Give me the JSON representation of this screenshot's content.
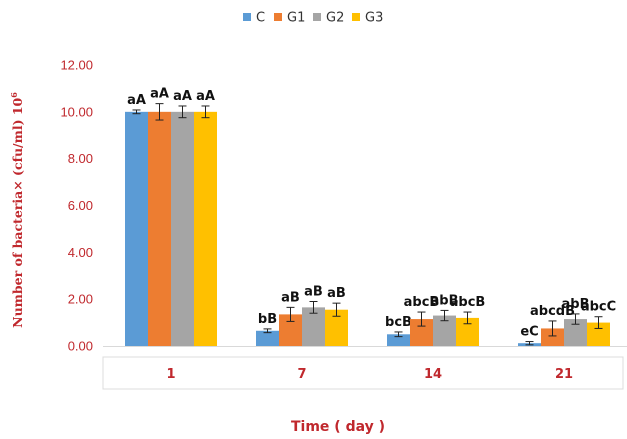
{
  "chart_data": {
    "type": "bar",
    "title": "",
    "xlabel": "Time ( day )",
    "ylabel": "Number of bacteria× (cfu/ml) 10",
    "ylabel_superscript": "6",
    "ylim": [
      0,
      12
    ],
    "yticks": [
      "0.00",
      "2.00",
      "4.00",
      "6.00",
      "8.00",
      "10.00",
      "12.00"
    ],
    "categories": [
      "1",
      "7",
      "14",
      "21"
    ],
    "legend_position": "top",
    "grid": false,
    "series": [
      {
        "name": "C",
        "color": "#5b9bd5",
        "values": [
          10.0,
          0.65,
          0.5,
          0.12
        ],
        "errors": [
          0.08,
          0.08,
          0.1,
          0.07
        ],
        "labels": [
          "aA",
          "bB",
          "bcB",
          "eC"
        ]
      },
      {
        "name": "G1",
        "color": "#ed7d31",
        "values": [
          10.0,
          1.35,
          1.15,
          0.75
        ],
        "errors": [
          0.35,
          0.3,
          0.3,
          0.32
        ],
        "labels": [
          "aA",
          "aB",
          "abcB",
          "abcdB"
        ]
      },
      {
        "name": "G2",
        "color": "#a5a5a5",
        "values": [
          10.0,
          1.65,
          1.3,
          1.15
        ],
        "errors": [
          0.25,
          0.25,
          0.22,
          0.22
        ],
        "labels": [
          "aA",
          "aB",
          "abB",
          "abB"
        ]
      },
      {
        "name": "G3",
        "color": "#ffc000",
        "values": [
          10.0,
          1.55,
          1.2,
          1.0
        ],
        "errors": [
          0.25,
          0.28,
          0.25,
          0.25
        ],
        "labels": [
          "aA",
          "aB",
          "abcB",
          "abcC"
        ]
      }
    ]
  }
}
